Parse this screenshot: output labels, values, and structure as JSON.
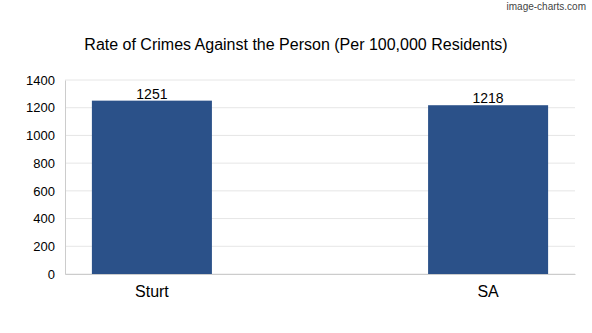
{
  "chart_data": {
    "type": "bar",
    "title": "Rate of Crimes Against the Person (Per 100,000 Residents)",
    "annotations": [
      "image-charts.com"
    ],
    "categories": [
      "Sturt",
      "SA"
    ],
    "values": [
      1251,
      1218
    ],
    "color": "#2b5189",
    "ylim": [
      0,
      1400
    ],
    "yticks": [
      0,
      200,
      400,
      600,
      800,
      1000,
      1200,
      1400
    ],
    "grid": true,
    "data_labels": true
  }
}
